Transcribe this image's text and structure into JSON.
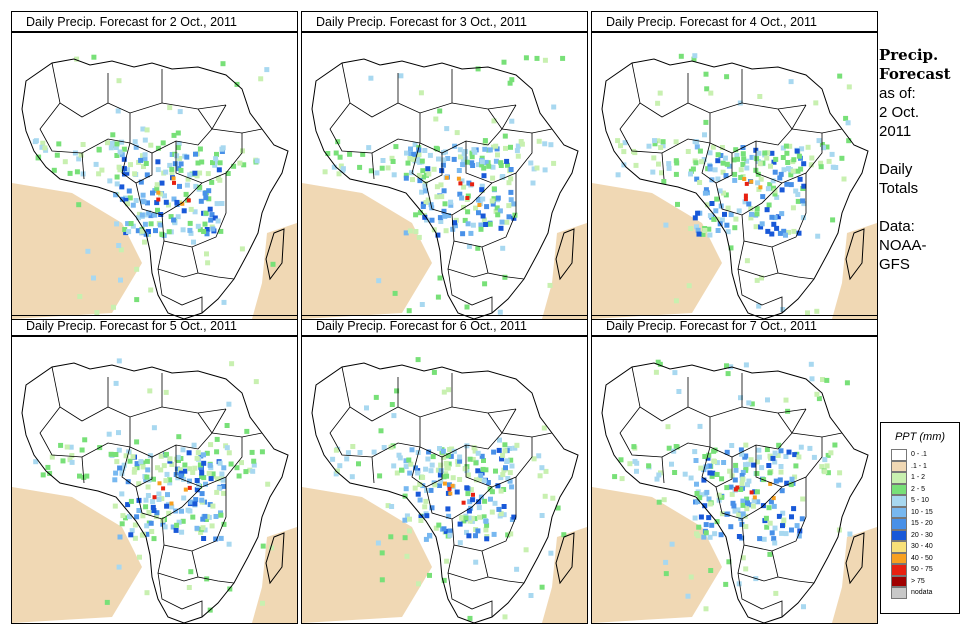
{
  "panels": [
    {
      "title": "Daily Precip. Forecast for  2 Oct., 2011"
    },
    {
      "title": "Daily Precip. Forecast for  3 Oct., 2011"
    },
    {
      "title": "Daily Precip. Forecast for  4 Oct., 2011"
    },
    {
      "title": "Daily Precip. Forecast for  5 Oct., 2011"
    },
    {
      "title": "Daily Precip. Forecast for  6 Oct., 2011"
    },
    {
      "title": "Daily Precip. Forecast for  7 Oct., 2011"
    }
  ],
  "side": {
    "title_line1": "Precip.",
    "title_line2": "Forecast",
    "asof_line1": "as of:",
    "asof_line2": "2 Oct.",
    "asof_line3": "2011",
    "totals_line1": "Daily",
    "totals_line2": "Totals",
    "data_line1": "Data:",
    "data_line2": "NOAA-",
    "data_line3": "GFS"
  },
  "legend": {
    "title": "PPT (mm)",
    "items": [
      {
        "label": "0 - .1",
        "color": "#ffffff"
      },
      {
        "label": ".1 - 1",
        "color": "#f0d8b4"
      },
      {
        "label": "1 - 2",
        "color": "#c8f0b0"
      },
      {
        "label": "2 - 5",
        "color": "#78e078"
      },
      {
        "label": "5 - 10",
        "color": "#a8d8f0"
      },
      {
        "label": "10 - 15",
        "color": "#78b8f0"
      },
      {
        "label": "15 - 20",
        "color": "#4890e8"
      },
      {
        "label": "20 - 30",
        "color": "#1858d8"
      },
      {
        "label": "30 - 40",
        "color": "#f8e078"
      },
      {
        "label": "40 - 50",
        "color": "#f8a020"
      },
      {
        "label": "50 - 75",
        "color": "#e82010"
      },
      {
        "label": "> 75",
        "color": "#a00000"
      },
      {
        "label": "nodata",
        "color": "#c8c8c8"
      }
    ]
  }
}
